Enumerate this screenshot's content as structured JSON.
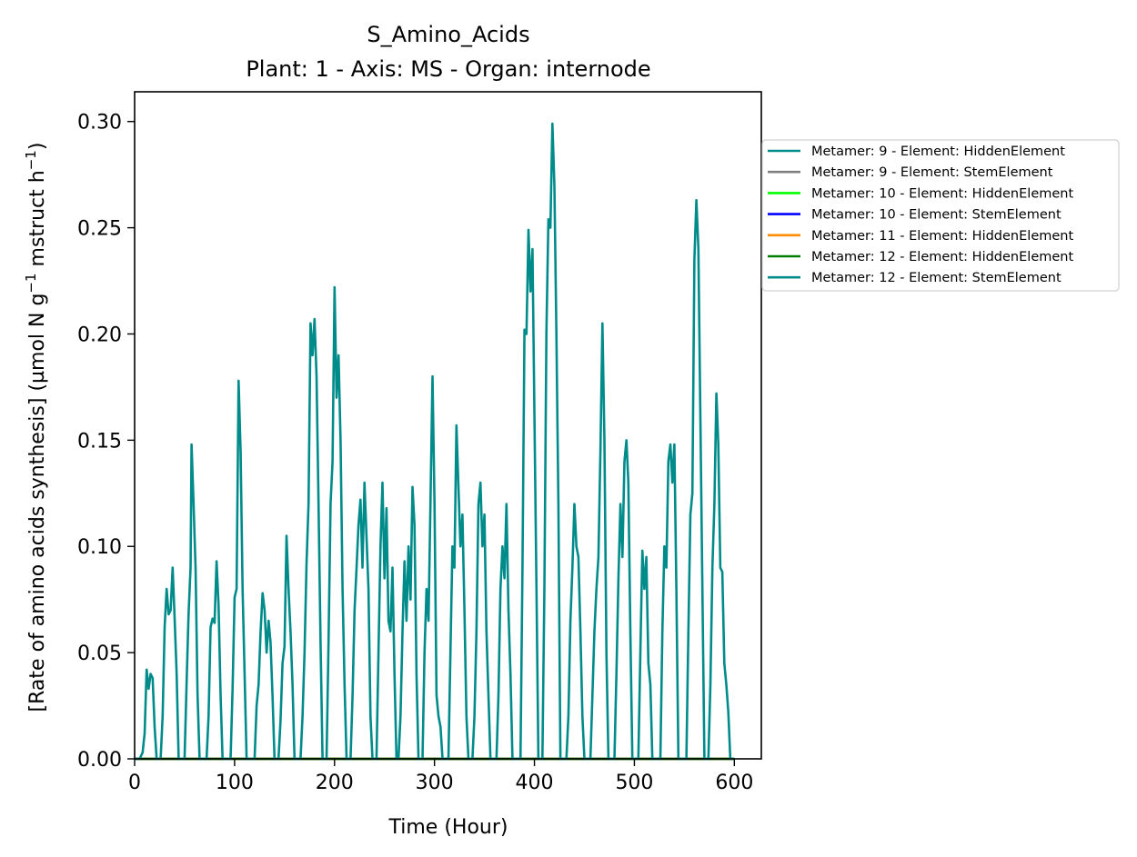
{
  "chart_data": {
    "type": "line",
    "title": "S_Amino_Acids",
    "subtitle": "Plant: 1 - Axis: MS - Organ: internode",
    "xlabel": "Time (Hour)",
    "ylabel_main": "[Rate of amino acids synthesis] (µmol N g",
    "ylabel_sup1": "−1",
    "ylabel_mid": " mstruct h",
    "ylabel_sup2": "−1",
    "ylabel_end": ")",
    "xlim": [
      0,
      627
    ],
    "ylim": [
      0,
      0.314
    ],
    "x_ticks": [
      0,
      100,
      200,
      300,
      400,
      500,
      600
    ],
    "x_tick_labels": [
      "0",
      "100",
      "200",
      "300",
      "400",
      "500",
      "600"
    ],
    "y_ticks": [
      0.0,
      0.05,
      0.1,
      0.15,
      0.2,
      0.25,
      0.3
    ],
    "y_tick_labels": [
      "0.00",
      "0.05",
      "0.10",
      "0.15",
      "0.20",
      "0.25",
      "0.30"
    ],
    "grid": false,
    "legend_position": "outside-right",
    "series": [
      {
        "name": "Metamer: 9 - Element: HiddenElement",
        "color": "#008b8b",
        "points": [
          [
            0,
            0
          ],
          [
            600,
            0
          ]
        ]
      },
      {
        "name": "Metamer: 9 - Element: StemElement",
        "color": "#808080",
        "points": [
          [
            0,
            0
          ],
          [
            600,
            0
          ]
        ]
      },
      {
        "name": "Metamer: 10 - Element: HiddenElement",
        "color": "#00ff00",
        "points": [
          [
            0,
            0
          ],
          [
            600,
            0
          ]
        ]
      },
      {
        "name": "Metamer: 10 - Element: StemElement",
        "color": "#0000ff",
        "points": [
          [
            0,
            0
          ],
          [
            600,
            0
          ]
        ]
      },
      {
        "name": "Metamer: 11 - Element: HiddenElement",
        "color": "#ff8c00",
        "points": [
          [
            0,
            0
          ],
          [
            600,
            0
          ]
        ]
      },
      {
        "name": "Metamer: 12 - Element: HiddenElement",
        "color": "#008000",
        "points": [
          [
            0,
            0
          ],
          [
            600,
            0
          ]
        ]
      },
      {
        "name": "Metamer: 12 - Element: StemElement",
        "color": "#008b8b",
        "points": [
          [
            0,
            0
          ],
          [
            5,
            0
          ],
          [
            8,
            0.003
          ],
          [
            10,
            0.012
          ],
          [
            12,
            0.042
          ],
          [
            14,
            0.033
          ],
          [
            16,
            0.04
          ],
          [
            18,
            0.038
          ],
          [
            20,
            0.015
          ],
          [
            22,
            0
          ],
          [
            26,
            0
          ],
          [
            28,
            0.02
          ],
          [
            30,
            0.062
          ],
          [
            32,
            0.08
          ],
          [
            34,
            0.068
          ],
          [
            36,
            0.07
          ],
          [
            38,
            0.09
          ],
          [
            40,
            0.066
          ],
          [
            42,
            0.04
          ],
          [
            44,
            0
          ],
          [
            50,
            0
          ],
          [
            52,
            0.035
          ],
          [
            54,
            0.068
          ],
          [
            56,
            0.09
          ],
          [
            57,
            0.148
          ],
          [
            59,
            0.12
          ],
          [
            61,
            0.09
          ],
          [
            63,
            0.03
          ],
          [
            65,
            0
          ],
          [
            72,
            0
          ],
          [
            74,
            0.02
          ],
          [
            76,
            0.062
          ],
          [
            78,
            0.066
          ],
          [
            80,
            0.064
          ],
          [
            82,
            0.093
          ],
          [
            84,
            0.072
          ],
          [
            86,
            0.03
          ],
          [
            88,
            0
          ],
          [
            96,
            0
          ],
          [
            98,
            0.033
          ],
          [
            100,
            0.076
          ],
          [
            102,
            0.08
          ],
          [
            104,
            0.178
          ],
          [
            106,
            0.145
          ],
          [
            108,
            0.08
          ],
          [
            110,
            0.04
          ],
          [
            112,
            0
          ],
          [
            120,
            0
          ],
          [
            122,
            0.025
          ],
          [
            124,
            0.035
          ],
          [
            126,
            0.06
          ],
          [
            128,
            0.078
          ],
          [
            130,
            0.07
          ],
          [
            132,
            0.05
          ],
          [
            134,
            0.065
          ],
          [
            136,
            0.055
          ],
          [
            138,
            0.03
          ],
          [
            140,
            0
          ],
          [
            144,
            0
          ],
          [
            146,
            0.018
          ],
          [
            148,
            0.045
          ],
          [
            150,
            0.053
          ],
          [
            152,
            0.105
          ],
          [
            154,
            0.08
          ],
          [
            156,
            0.06
          ],
          [
            158,
            0.035
          ],
          [
            160,
            0
          ],
          [
            166,
            0
          ],
          [
            168,
            0.02
          ],
          [
            170,
            0.05
          ],
          [
            172,
            0.092
          ],
          [
            174,
            0.12
          ],
          [
            176,
            0.205
          ],
          [
            178,
            0.19
          ],
          [
            180,
            0.207
          ],
          [
            182,
            0.18
          ],
          [
            184,
            0.12
          ],
          [
            186,
            0.055
          ],
          [
            188,
            0
          ],
          [
            192,
            0
          ],
          [
            194,
            0.055
          ],
          [
            196,
            0.12
          ],
          [
            198,
            0.14
          ],
          [
            200,
            0.222
          ],
          [
            202,
            0.17
          ],
          [
            204,
            0.19
          ],
          [
            206,
            0.15
          ],
          [
            208,
            0.08
          ],
          [
            210,
            0.035
          ],
          [
            212,
            0
          ],
          [
            216,
            0
          ],
          [
            218,
            0.03
          ],
          [
            220,
            0.07
          ],
          [
            222,
            0.09
          ],
          [
            224,
            0.11
          ],
          [
            226,
            0.122
          ],
          [
            228,
            0.09
          ],
          [
            230,
            0.13
          ],
          [
            232,
            0.105
          ],
          [
            234,
            0.08
          ],
          [
            236,
            0.02
          ],
          [
            238,
            0
          ],
          [
            242,
            0
          ],
          [
            244,
            0.05
          ],
          [
            246,
            0.1
          ],
          [
            248,
            0.13
          ],
          [
            250,
            0.085
          ],
          [
            252,
            0.118
          ],
          [
            254,
            0.065
          ],
          [
            256,
            0.06
          ],
          [
            258,
            0.09
          ],
          [
            260,
            0.04
          ],
          [
            262,
            0
          ],
          [
            264,
            0
          ],
          [
            266,
            0.02
          ],
          [
            268,
            0.06
          ],
          [
            270,
            0.093
          ],
          [
            272,
            0.065
          ],
          [
            274,
            0.1
          ],
          [
            276,
            0.075
          ],
          [
            278,
            0.128
          ],
          [
            280,
            0.11
          ],
          [
            282,
            0.04
          ],
          [
            284,
            0
          ],
          [
            288,
            0
          ],
          [
            290,
            0.05
          ],
          [
            292,
            0.08
          ],
          [
            294,
            0.065
          ],
          [
            296,
            0.122
          ],
          [
            298,
            0.18
          ],
          [
            300,
            0.12
          ],
          [
            302,
            0.03
          ],
          [
            304,
            0.02
          ],
          [
            306,
            0.015
          ],
          [
            308,
            0
          ],
          [
            314,
            0
          ],
          [
            316,
            0.05
          ],
          [
            318,
            0.1
          ],
          [
            320,
            0.09
          ],
          [
            322,
            0.157
          ],
          [
            324,
            0.128
          ],
          [
            326,
            0.1
          ],
          [
            328,
            0.115
          ],
          [
            330,
            0.07
          ],
          [
            332,
            0.02
          ],
          [
            334,
            0
          ],
          [
            338,
            0
          ],
          [
            340,
            0.02
          ],
          [
            342,
            0.06
          ],
          [
            344,
            0.12
          ],
          [
            346,
            0.13
          ],
          [
            348,
            0.1
          ],
          [
            350,
            0.115
          ],
          [
            352,
            0.06
          ],
          [
            354,
            0.03
          ],
          [
            356,
            0
          ],
          [
            362,
            0
          ],
          [
            364,
            0.03
          ],
          [
            366,
            0.08
          ],
          [
            368,
            0.1
          ],
          [
            370,
            0.085
          ],
          [
            372,
            0.12
          ],
          [
            374,
            0.07
          ],
          [
            376,
            0.04
          ],
          [
            378,
            0
          ],
          [
            386,
            0
          ],
          [
            388,
            0.09
          ],
          [
            390,
            0.202
          ],
          [
            392,
            0.2
          ],
          [
            394,
            0.249
          ],
          [
            396,
            0.22
          ],
          [
            398,
            0.24
          ],
          [
            400,
            0.16
          ],
          [
            402,
            0.08
          ],
          [
            404,
            0
          ],
          [
            408,
            0
          ],
          [
            410,
            0.08
          ],
          [
            412,
            0.2
          ],
          [
            414,
            0.254
          ],
          [
            416,
            0.25
          ],
          [
            418,
            0.299
          ],
          [
            420,
            0.27
          ],
          [
            422,
            0.2
          ],
          [
            424,
            0.12
          ],
          [
            426,
            0
          ],
          [
            432,
            0
          ],
          [
            434,
            0.02
          ],
          [
            436,
            0.065
          ],
          [
            438,
            0.09
          ],
          [
            440,
            0.12
          ],
          [
            442,
            0.1
          ],
          [
            444,
            0.095
          ],
          [
            446,
            0.06
          ],
          [
            448,
            0.02
          ],
          [
            450,
            0
          ],
          [
            456,
            0
          ],
          [
            458,
            0.03
          ],
          [
            460,
            0.06
          ],
          [
            462,
            0.08
          ],
          [
            464,
            0.095
          ],
          [
            466,
            0.145
          ],
          [
            468,
            0.205
          ],
          [
            470,
            0.15
          ],
          [
            472,
            0.05
          ],
          [
            474,
            0
          ],
          [
            480,
            0
          ],
          [
            482,
            0.04
          ],
          [
            484,
            0.085
          ],
          [
            486,
            0.12
          ],
          [
            488,
            0.095
          ],
          [
            490,
            0.14
          ],
          [
            492,
            0.15
          ],
          [
            494,
            0.13
          ],
          [
            496,
            0.06
          ],
          [
            498,
            0
          ],
          [
            504,
            0
          ],
          [
            506,
            0.05
          ],
          [
            508,
            0.098
          ],
          [
            510,
            0.08
          ],
          [
            512,
            0.095
          ],
          [
            514,
            0.045
          ],
          [
            516,
            0.035
          ],
          [
            518,
            0
          ],
          [
            526,
            0
          ],
          [
            528,
            0.06
          ],
          [
            530,
            0.1
          ],
          [
            532,
            0.09
          ],
          [
            534,
            0.14
          ],
          [
            536,
            0.148
          ],
          [
            538,
            0.13
          ],
          [
            540,
            0.148
          ],
          [
            542,
            0.08
          ],
          [
            544,
            0
          ],
          [
            552,
            0
          ],
          [
            554,
            0.06
          ],
          [
            556,
            0.115
          ],
          [
            558,
            0.125
          ],
          [
            560,
            0.235
          ],
          [
            562,
            0.263
          ],
          [
            564,
            0.24
          ],
          [
            566,
            0.16
          ],
          [
            568,
            0.08
          ],
          [
            570,
            0
          ],
          [
            574,
            0
          ],
          [
            576,
            0.035
          ],
          [
            578,
            0.09
          ],
          [
            580,
            0.12
          ],
          [
            582,
            0.172
          ],
          [
            584,
            0.148
          ],
          [
            586,
            0.09
          ],
          [
            588,
            0.088
          ],
          [
            590,
            0.045
          ],
          [
            592,
            0.035
          ],
          [
            594,
            0.022
          ],
          [
            596,
            0
          ],
          [
            600,
            0
          ]
        ]
      }
    ]
  }
}
